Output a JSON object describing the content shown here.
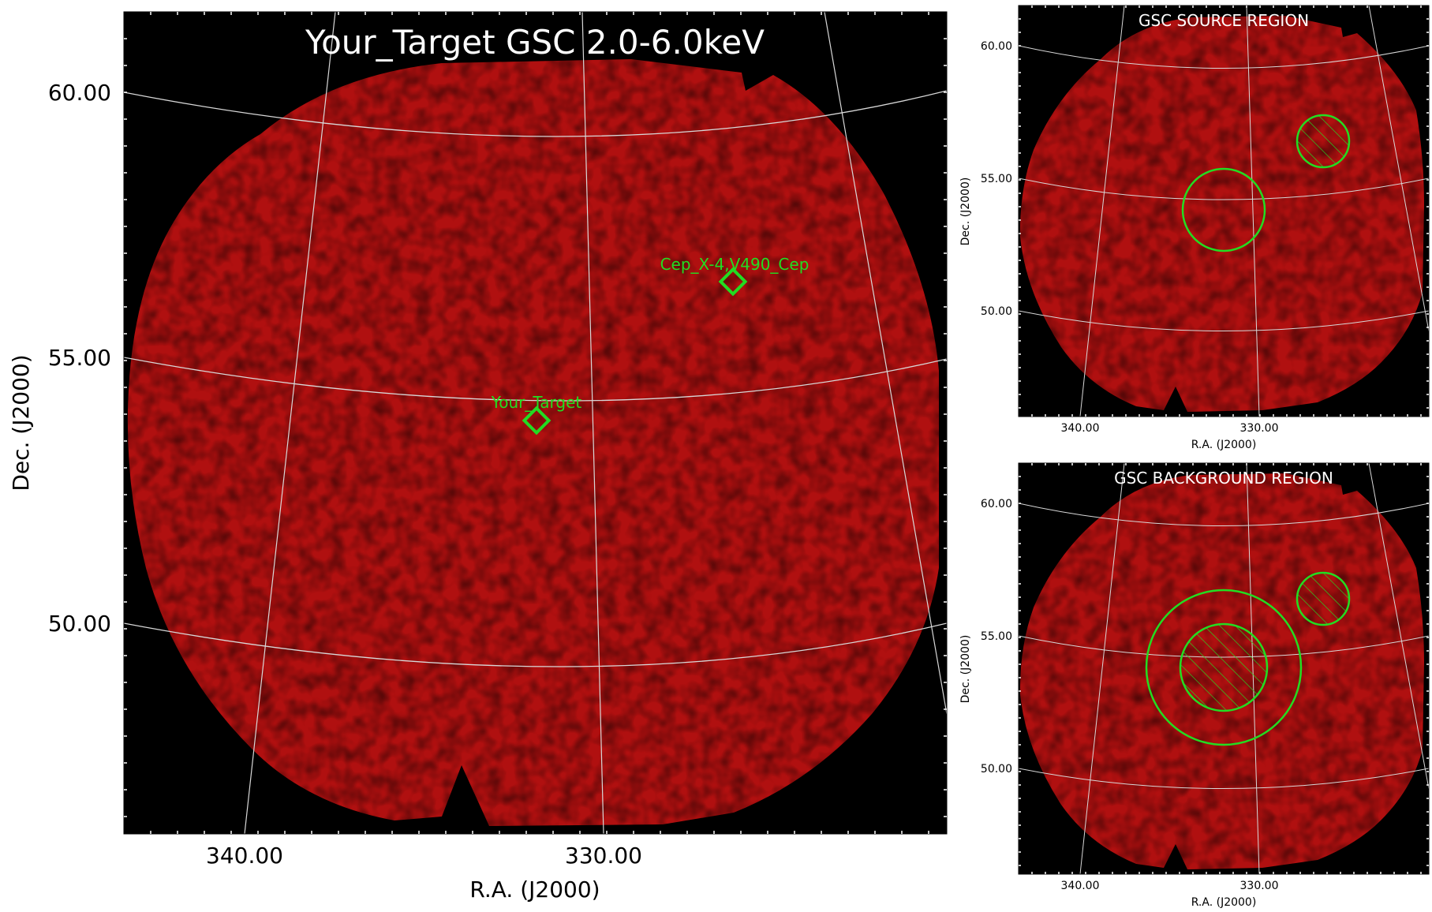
{
  "colors": {
    "field": "#b01010",
    "field_edge": "#7a0808",
    "sky": "#000000",
    "grid": "#d8d8d8",
    "marker": "#22dd22",
    "title_text": "#ffffff",
    "axis_text": "#000000"
  },
  "main_panel": {
    "title": "Your_Target GSC 2.0-6.0keV",
    "xlabel": "R.A. (J2000)",
    "ylabel": "Dec. (J2000)",
    "x_ticks": [
      "340.00",
      "330.00"
    ],
    "y_ticks": [
      "60.00",
      "55.00",
      "50.00"
    ],
    "sources": [
      {
        "name": "Cep_X-4,V490_Cep",
        "ra": 324.9,
        "dec": 56.4
      },
      {
        "name": "Your_Target",
        "ra": 331.5,
        "dec": 53.8
      }
    ]
  },
  "source_panel": {
    "title": "GSC SOURCE REGION",
    "xlabel": "R.A. (J2000)",
    "ylabel": "Dec. (J2000)",
    "x_ticks": [
      "340.00",
      "330.00"
    ],
    "y_ticks": [
      "60.00",
      "55.00",
      "50.00"
    ],
    "regions": [
      {
        "kind": "source-circle",
        "ra": 331.5,
        "dec": 53.8,
        "radius_deg": 1.55,
        "hatched": false
      },
      {
        "kind": "excluded-circle",
        "ra": 325.8,
        "dec": 56.5,
        "radius_deg": 0.98,
        "hatched": true
      }
    ]
  },
  "background_panel": {
    "title": "GSC BACKGROUND REGION",
    "xlabel": "R.A. (J2000)",
    "ylabel": "Dec. (J2000)",
    "x_ticks": [
      "340.00",
      "330.00"
    ],
    "y_ticks": [
      "60.00",
      "55.00",
      "50.00"
    ],
    "regions": [
      {
        "kind": "background-annulus-outer",
        "ra": 331.5,
        "dec": 53.8,
        "radius_deg": 2.9,
        "hatched": false
      },
      {
        "kind": "excluded-inner-circle",
        "ra": 331.5,
        "dec": 53.8,
        "radius_deg": 1.65,
        "hatched": true
      },
      {
        "kind": "excluded-circle",
        "ra": 325.8,
        "dec": 56.5,
        "radius_deg": 0.98,
        "hatched": true
      }
    ]
  },
  "chart_data": [
    {
      "type": "heatmap",
      "title": "Your_Target GSC 2.0-6.0keV",
      "xlabel": "R.A. (J2000)",
      "ylabel": "Dec. (J2000)",
      "x_ticks": [
        340.0,
        330.0
      ],
      "y_ticks": [
        60.0,
        55.0,
        50.0
      ],
      "markers": [
        {
          "label": "Cep_X-4,V490_Cep",
          "ra": 324.9,
          "dec": 56.4,
          "shape": "diamond"
        },
        {
          "label": "Your_Target",
          "ra": 331.5,
          "dec": 53.8,
          "shape": "diamond"
        }
      ]
    },
    {
      "type": "heatmap",
      "title": "GSC SOURCE REGION",
      "xlabel": "R.A. (J2000)",
      "ylabel": "Dec. (J2000)",
      "x_ticks": [
        340.0,
        330.0
      ],
      "y_ticks": [
        60.0,
        55.0,
        50.0
      ]
    },
    {
      "type": "heatmap",
      "title": "GSC BACKGROUND REGION",
      "xlabel": "R.A. (J2000)",
      "ylabel": "Dec. (J2000)",
      "x_ticks": [
        340.0,
        330.0
      ],
      "y_ticks": [
        60.0,
        55.0,
        50.0
      ]
    }
  ]
}
